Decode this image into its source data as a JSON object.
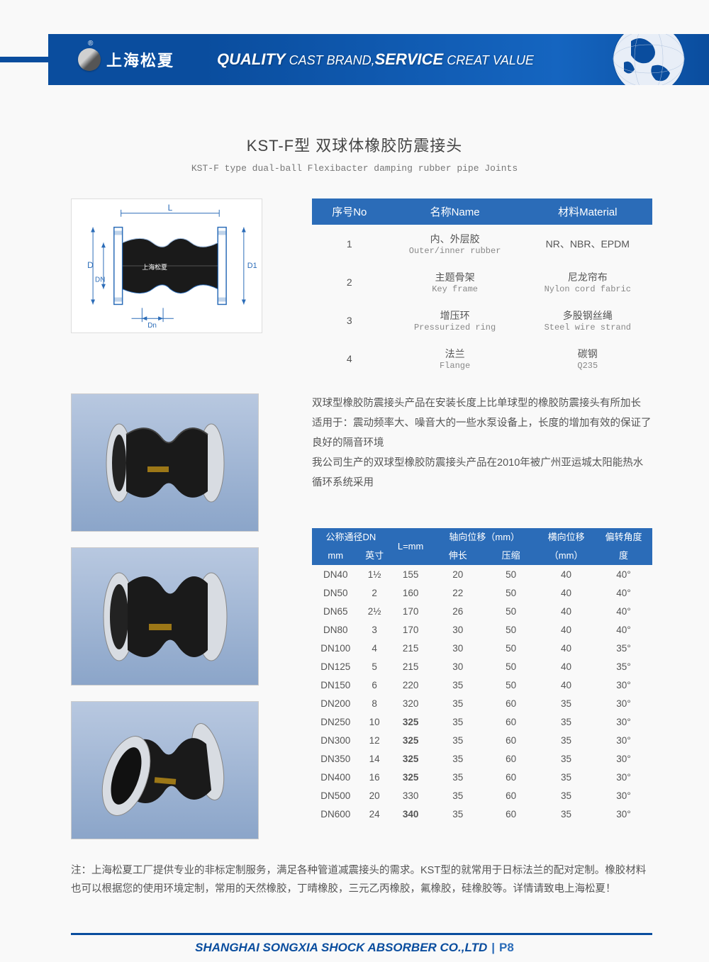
{
  "brand": {
    "name": "上海松夏",
    "r": "®"
  },
  "slogan": {
    "q": "QUALITY",
    "cb": " CAST BRAND,",
    "s": "SERVICE",
    "cv": " CREAT VALUE"
  },
  "title": {
    "cn": "KST-F型 双球体橡胶防震接头",
    "en": "KST-F type dual-ball Flexibacter damping rubber pipe Joints"
  },
  "diagram": {
    "L": "L",
    "D": "D",
    "DN": "DN",
    "D1": "D1",
    "Dn": "Dn",
    "wm": "上海松夏"
  },
  "material": {
    "headers": {
      "no": "序号No",
      "name": "名称Name",
      "mat": "材料Material"
    },
    "rows": [
      {
        "no": "1",
        "name_cn": "内、外层胶",
        "name_en": "Outer/inner rubber",
        "mat_cn": "NR、NBR、EPDM",
        "mat_en": ""
      },
      {
        "no": "2",
        "name_cn": "主题骨架",
        "name_en": "Key frame",
        "mat_cn": "尼龙帘布",
        "mat_en": "Nylon cord fabric"
      },
      {
        "no": "3",
        "name_cn": "增压环",
        "name_en": "Pressurized ring",
        "mat_cn": "多股钢丝绳",
        "mat_en": "Steel wire strand"
      },
      {
        "no": "4",
        "name_cn": "法兰",
        "name_en": "Flange",
        "mat_cn": "碳钢",
        "mat_en": "Q235"
      }
    ]
  },
  "description": {
    "p1": "双球型橡胶防震接头产品在安装长度上比单球型的橡胶防震接头有所加长",
    "p2": "适用于：震动频率大、噪音大的一些水泵设备上，长度的增加有效的保证了良好的隔音环境",
    "p3": "我公司生产的双球型橡胶防震接头产品在2010年被广州亚运城太阳能热水循环系统采用"
  },
  "spec": {
    "h": {
      "dn": "公称通径DN",
      "dn_mm": "mm",
      "dn_in": "英寸",
      "L": "L=mm",
      "ax": "轴向位移（mm）",
      "ax_e": "伸长",
      "ax_c": "压缩",
      "lat": "横向位移",
      "lat_u": "（mm）",
      "ang": "偏转角度",
      "ang_u": "度"
    },
    "rows": [
      {
        "dn": "DN40",
        "in": "1½",
        "L": "155",
        "e": "20",
        "c": "50",
        "lat": "40",
        "ang": "40°"
      },
      {
        "dn": "DN50",
        "in": "2",
        "L": "160",
        "e": "22",
        "c": "50",
        "lat": "40",
        "ang": "40°"
      },
      {
        "dn": "DN65",
        "in": "2½",
        "L": "170",
        "e": "26",
        "c": "50",
        "lat": "40",
        "ang": "40°"
      },
      {
        "dn": "DN80",
        "in": "3",
        "L": "170",
        "e": "30",
        "c": "50",
        "lat": "40",
        "ang": "40°"
      },
      {
        "dn": "DN100",
        "in": "4",
        "L": "215",
        "e": "30",
        "c": "50",
        "lat": "40",
        "ang": "35°"
      },
      {
        "dn": "DN125",
        "in": "5",
        "L": "215",
        "e": "30",
        "c": "50",
        "lat": "40",
        "ang": "35°"
      },
      {
        "dn": "DN150",
        "in": "6",
        "L": "220",
        "e": "35",
        "c": "50",
        "lat": "40",
        "ang": "30°"
      },
      {
        "dn": "DN200",
        "in": "8",
        "L": "320",
        "e": "35",
        "c": "60",
        "lat": "35",
        "ang": "30°"
      },
      {
        "dn": "DN250",
        "in": "10",
        "L": "325",
        "Lb": true,
        "e": "35",
        "c": "60",
        "lat": "35",
        "ang": "30°"
      },
      {
        "dn": "DN300",
        "in": "12",
        "L": "325",
        "Lb": true,
        "e": "35",
        "c": "60",
        "lat": "35",
        "ang": "30°"
      },
      {
        "dn": "DN350",
        "in": "14",
        "L": "325",
        "Lb": true,
        "e": "35",
        "c": "60",
        "lat": "35",
        "ang": "30°"
      },
      {
        "dn": "DN400",
        "in": "16",
        "L": "325",
        "Lb": true,
        "e": "35",
        "c": "60",
        "lat": "35",
        "ang": "30°"
      },
      {
        "dn": "DN500",
        "in": "20",
        "L": "330",
        "e": "35",
        "c": "60",
        "lat": "35",
        "ang": "30°"
      },
      {
        "dn": "DN600",
        "in": "24",
        "L": "340",
        "Lb": true,
        "e": "35",
        "c": "60",
        "lat": "35",
        "ang": "30°"
      }
    ]
  },
  "note": "注：上海松夏工厂提供专业的非标定制服务，满足各种管道减震接头的需求。KST型的就常用于日标法兰的配对定制。橡胶材料也可以根据您的使用环境定制，常用的天然橡胶，丁晴橡胶，三元乙丙橡胶，氟橡胶，硅橡胶等。详情请致电上海松夏！",
  "footer": {
    "company": "SHANGHAI SONGXIA SHOCK ABSORBER CO.,LTD",
    "page": "P8"
  }
}
